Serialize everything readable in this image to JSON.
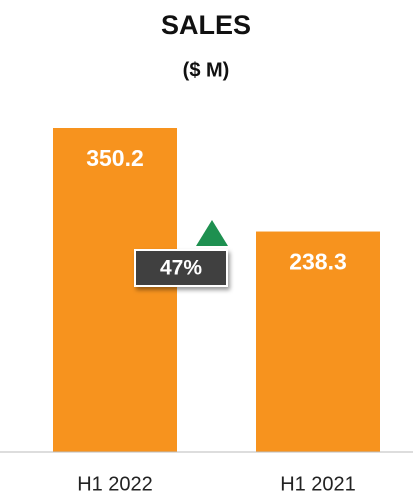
{
  "chart_data": {
    "type": "bar",
    "title": "SALES",
    "subtitle": "($ M)",
    "categories": [
      "H1 2022",
      "H1 2021"
    ],
    "values": [
      350.2,
      238.3
    ],
    "color": "#f7931e",
    "annotation": "47%"
  }
}
